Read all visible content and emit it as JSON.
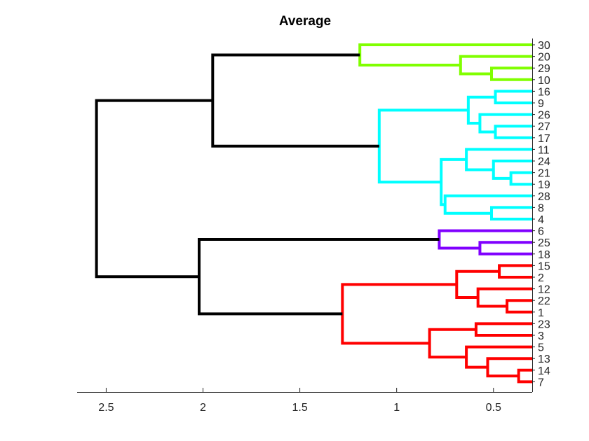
{
  "chart_data": {
    "type": "dendrogram",
    "title": "Average",
    "orientation": "leaves-right",
    "xlim": [
      2.65,
      0.3
    ],
    "xticks": [
      2.5,
      2,
      1.5,
      1,
      0.5
    ],
    "xtick_labels": [
      "2.5",
      "2",
      "1.5",
      "1",
      "0.5"
    ],
    "colors": {
      "green": "#80ff00",
      "cyan": "#00ffff",
      "purple": "#8000ff",
      "red": "#ff0000",
      "black": "#000000"
    },
    "leaves": [
      "30",
      "20",
      "29",
      "10",
      "16",
      "9",
      "26",
      "27",
      "17",
      "11",
      "24",
      "21",
      "19",
      "28",
      "8",
      "4",
      "6",
      "25",
      "18",
      "15",
      "2",
      "12",
      "22",
      "1",
      "23",
      "3",
      "5",
      "13",
      "14",
      "7"
    ],
    "merges": [
      {
        "id": "m1",
        "a": "29",
        "b": "10",
        "height": 0.51,
        "color": "green"
      },
      {
        "id": "m2",
        "a": "20",
        "b": "m1",
        "height": 0.67,
        "color": "green"
      },
      {
        "id": "m3",
        "a": "30",
        "b": "m2",
        "height": 1.19,
        "color": "green"
      },
      {
        "id": "m4",
        "a": "16",
        "b": "9",
        "height": 0.49,
        "color": "cyan"
      },
      {
        "id": "m5",
        "a": "27",
        "b": "17",
        "height": 0.49,
        "color": "cyan"
      },
      {
        "id": "m6",
        "a": "26",
        "b": "m5",
        "height": 0.57,
        "color": "cyan"
      },
      {
        "id": "m7",
        "a": "m4",
        "b": "m6",
        "height": 0.63,
        "color": "cyan"
      },
      {
        "id": "m8",
        "a": "21",
        "b": "19",
        "height": 0.41,
        "color": "cyan"
      },
      {
        "id": "m9",
        "a": "24",
        "b": "m8",
        "height": 0.5,
        "color": "cyan"
      },
      {
        "id": "m10",
        "a": "11",
        "b": "m9",
        "height": 0.64,
        "color": "cyan"
      },
      {
        "id": "m11",
        "a": "8",
        "b": "4",
        "height": 0.51,
        "color": "cyan"
      },
      {
        "id": "m12",
        "a": "28",
        "b": "m11",
        "height": 0.75,
        "color": "cyan"
      },
      {
        "id": "m13",
        "a": "m10",
        "b": "m12",
        "height": 0.77,
        "color": "cyan"
      },
      {
        "id": "m14",
        "a": "m7",
        "b": "m13",
        "height": 1.09,
        "color": "cyan"
      },
      {
        "id": "m15",
        "a": "m3",
        "b": "m14",
        "height": 1.95,
        "color": "black"
      },
      {
        "id": "m16",
        "a": "25",
        "b": "18",
        "height": 0.57,
        "color": "purple"
      },
      {
        "id": "m17",
        "a": "6",
        "b": "m16",
        "height": 0.78,
        "color": "purple"
      },
      {
        "id": "m18",
        "a": "15",
        "b": "2",
        "height": 0.47,
        "color": "red"
      },
      {
        "id": "m19",
        "a": "22",
        "b": "1",
        "height": 0.43,
        "color": "red"
      },
      {
        "id": "m20",
        "a": "12",
        "b": "m19",
        "height": 0.58,
        "color": "red"
      },
      {
        "id": "m21",
        "a": "m18",
        "b": "m20",
        "height": 0.69,
        "color": "red"
      },
      {
        "id": "m22",
        "a": "23",
        "b": "3",
        "height": 0.59,
        "color": "red"
      },
      {
        "id": "m23",
        "a": "14",
        "b": "7",
        "height": 0.37,
        "color": "red"
      },
      {
        "id": "m24",
        "a": "13",
        "b": "m23",
        "height": 0.53,
        "color": "red"
      },
      {
        "id": "m25",
        "a": "5",
        "b": "m24",
        "height": 0.64,
        "color": "red"
      },
      {
        "id": "m26",
        "a": "m22",
        "b": "m25",
        "height": 0.83,
        "color": "red"
      },
      {
        "id": "m27",
        "a": "m21",
        "b": "m26",
        "height": 1.28,
        "color": "red"
      },
      {
        "id": "m28",
        "a": "m17",
        "b": "m27",
        "height": 2.02,
        "color": "black"
      },
      {
        "id": "m29",
        "a": "m15",
        "b": "m28",
        "height": 2.55,
        "color": "black"
      }
    ]
  }
}
